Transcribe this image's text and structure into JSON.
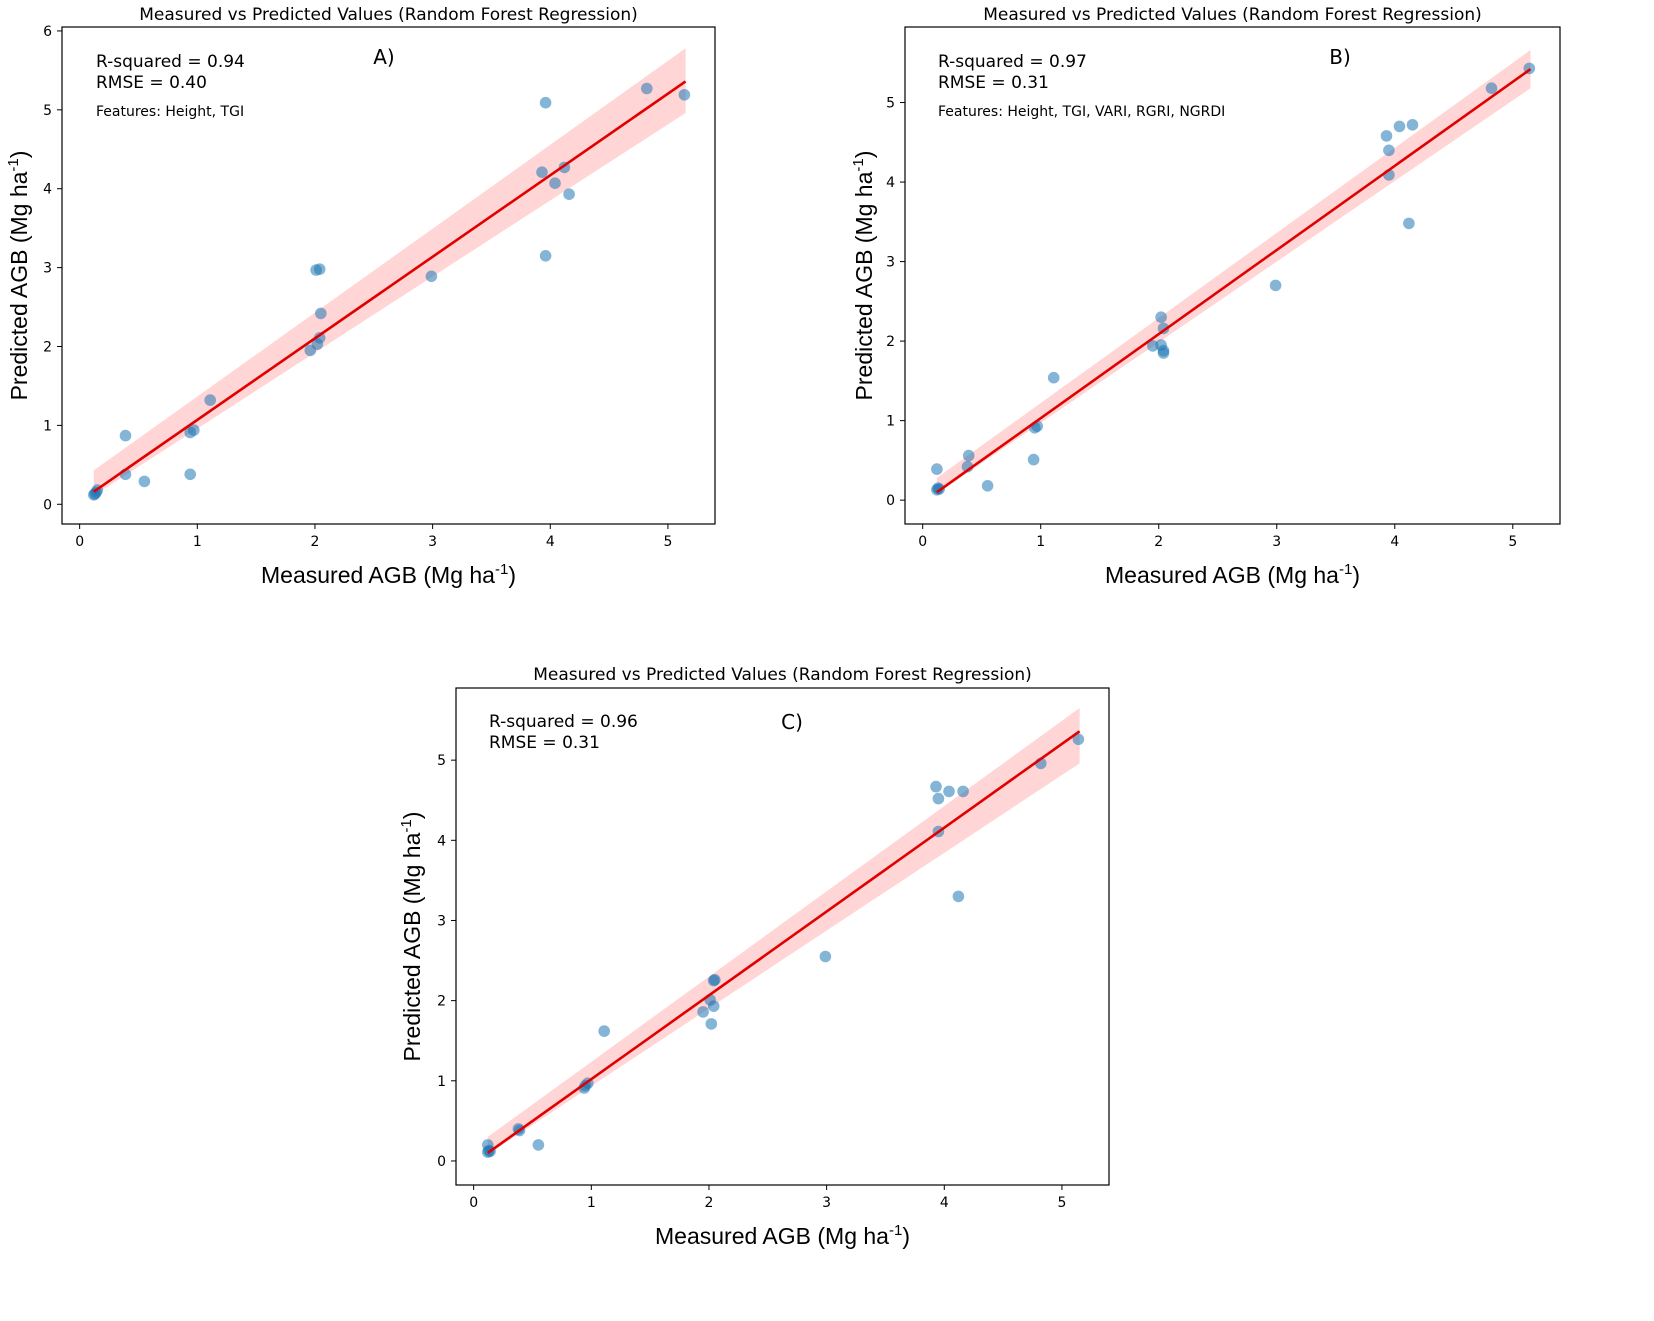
{
  "figure": {
    "panels": [
      "A",
      "B",
      "C"
    ]
  },
  "chart_data": [
    {
      "id": "A",
      "type": "scatter",
      "title": "Measured vs Predicted Values (Random Forest Regression)",
      "panel_label": "A)",
      "xlabel": "Measured AGB (Mg ha",
      "ylabel": "Predicted AGB (Mg ha",
      "unit_superscript": "-1",
      "unit_close": ")",
      "xlim": [
        -0.15,
        5.4
      ],
      "ylim": [
        -0.25,
        6.05
      ],
      "xticks": [
        0,
        1,
        2,
        3,
        4,
        5
      ],
      "yticks": [
        0,
        1,
        2,
        3,
        4,
        5,
        6
      ],
      "annotations": {
        "r_squared": "R-squared = 0.94",
        "rmse": "RMSE = 0.40",
        "features": "Features: Height, TGI"
      },
      "regression": {
        "x0": 0.12,
        "y0": 0.16,
        "x1": 5.15,
        "y1": 5.36
      },
      "confidence_band": {
        "lower": [
          0.05,
          0.33,
          4.96
        ],
        "upper": [
          0.27,
          0.33,
          5.78
        ]
      },
      "point_color": "#1f77b4",
      "line_color": "#e00000",
      "band_color": "#ffb3b3",
      "points": [
        {
          "x": 0.12,
          "y": 0.12
        },
        {
          "x": 0.13,
          "y": 0.13
        },
        {
          "x": 0.14,
          "y": 0.15
        },
        {
          "x": 0.15,
          "y": 0.18
        },
        {
          "x": 0.39,
          "y": 0.87
        },
        {
          "x": 0.39,
          "y": 0.38
        },
        {
          "x": 0.55,
          "y": 0.29
        },
        {
          "x": 0.94,
          "y": 0.38
        },
        {
          "x": 0.94,
          "y": 0.91
        },
        {
          "x": 0.97,
          "y": 0.94
        },
        {
          "x": 1.11,
          "y": 1.32
        },
        {
          "x": 1.96,
          "y": 1.95
        },
        {
          "x": 2.01,
          "y": 2.97
        },
        {
          "x": 2.04,
          "y": 2.98
        },
        {
          "x": 2.02,
          "y": 2.03
        },
        {
          "x": 2.04,
          "y": 2.11
        },
        {
          "x": 2.05,
          "y": 2.42
        },
        {
          "x": 2.99,
          "y": 2.89
        },
        {
          "x": 3.93,
          "y": 4.21
        },
        {
          "x": 3.96,
          "y": 5.09
        },
        {
          "x": 3.96,
          "y": 3.15
        },
        {
          "x": 4.04,
          "y": 4.07
        },
        {
          "x": 4.12,
          "y": 4.27
        },
        {
          "x": 4.16,
          "y": 3.93
        },
        {
          "x": 4.82,
          "y": 5.27
        },
        {
          "x": 5.14,
          "y": 5.19
        }
      ]
    },
    {
      "id": "B",
      "type": "scatter",
      "title": "Measured vs Predicted Values (Random Forest Regression)",
      "panel_label": "B)",
      "xlabel": "Measured AGB (Mg ha",
      "ylabel": "Predicted AGB (Mg ha",
      "unit_superscript": "-1",
      "unit_close": ")",
      "xlim": [
        -0.15,
        5.4
      ],
      "ylim": [
        -0.3,
        5.95
      ],
      "xticks": [
        0,
        1,
        2,
        3,
        4,
        5
      ],
      "yticks": [
        0,
        1,
        2,
        3,
        4,
        5
      ],
      "annotations": {
        "r_squared": "R-squared = 0.97",
        "rmse": "RMSE = 0.31",
        "features": "Features: Height, TGI, VARI, RGRI, NGRDI"
      },
      "regression": {
        "x0": 0.12,
        "y0": 0.1,
        "x1": 5.15,
        "y1": 5.42
      },
      "confidence_band": {
        "lower": [
          0.02,
          0.3,
          5.18
        ],
        "upper": [
          0.18,
          0.3,
          5.66
        ]
      },
      "point_color": "#1f77b4",
      "line_color": "#e00000",
      "band_color": "#ffb3b3",
      "points": [
        {
          "x": 0.12,
          "y": 0.13
        },
        {
          "x": 0.13,
          "y": 0.15
        },
        {
          "x": 0.14,
          "y": 0.14
        },
        {
          "x": 0.12,
          "y": 0.39
        },
        {
          "x": 0.38,
          "y": 0.42
        },
        {
          "x": 0.39,
          "y": 0.56
        },
        {
          "x": 0.55,
          "y": 0.18
        },
        {
          "x": 0.94,
          "y": 0.51
        },
        {
          "x": 0.95,
          "y": 0.91
        },
        {
          "x": 0.97,
          "y": 0.93
        },
        {
          "x": 1.11,
          "y": 1.54
        },
        {
          "x": 1.95,
          "y": 1.94
        },
        {
          "x": 2.02,
          "y": 2.3
        },
        {
          "x": 2.02,
          "y": 1.95
        },
        {
          "x": 2.04,
          "y": 1.88
        },
        {
          "x": 2.04,
          "y": 1.85
        },
        {
          "x": 2.04,
          "y": 2.16
        },
        {
          "x": 2.99,
          "y": 2.7
        },
        {
          "x": 3.93,
          "y": 4.58
        },
        {
          "x": 3.95,
          "y": 4.4
        },
        {
          "x": 3.95,
          "y": 4.09
        },
        {
          "x": 4.04,
          "y": 4.7
        },
        {
          "x": 4.12,
          "y": 3.48
        },
        {
          "x": 4.15,
          "y": 4.72
        },
        {
          "x": 4.82,
          "y": 5.18
        },
        {
          "x": 5.14,
          "y": 5.43
        }
      ]
    },
    {
      "id": "C",
      "type": "scatter",
      "title": "Measured vs Predicted Values (Random Forest Regression)",
      "panel_label": "C)",
      "xlabel": "Measured AGB (Mg ha",
      "ylabel": "Predicted AGB (Mg ha",
      "unit_superscript": "-1",
      "unit_close": ")",
      "xlim": [
        -0.15,
        5.4
      ],
      "ylim": [
        -0.3,
        5.9
      ],
      "xticks": [
        0,
        1,
        2,
        3,
        4,
        5
      ],
      "yticks": [
        0,
        1,
        2,
        3,
        4,
        5
      ],
      "annotations": {
        "r_squared": "R-squared = 0.96",
        "rmse": "RMSE = 0.31",
        "features": ""
      },
      "regression": {
        "x0": 0.12,
        "y0": 0.1,
        "x1": 5.15,
        "y1": 5.36
      },
      "confidence_band": {
        "lower": [
          0.02,
          0.3,
          4.96
        ],
        "upper": [
          0.2,
          0.3,
          5.65
        ]
      },
      "point_color": "#1f77b4",
      "line_color": "#e00000",
      "band_color": "#ffb3b3",
      "points": [
        {
          "x": 0.12,
          "y": 0.11
        },
        {
          "x": 0.13,
          "y": 0.13
        },
        {
          "x": 0.12,
          "y": 0.2
        },
        {
          "x": 0.14,
          "y": 0.12
        },
        {
          "x": 0.38,
          "y": 0.4
        },
        {
          "x": 0.39,
          "y": 0.38
        },
        {
          "x": 0.55,
          "y": 0.2
        },
        {
          "x": 0.94,
          "y": 0.91
        },
        {
          "x": 0.95,
          "y": 0.94
        },
        {
          "x": 0.97,
          "y": 0.97
        },
        {
          "x": 1.11,
          "y": 1.62
        },
        {
          "x": 1.95,
          "y": 1.86
        },
        {
          "x": 2.01,
          "y": 2.01
        },
        {
          "x": 2.02,
          "y": 1.71
        },
        {
          "x": 2.04,
          "y": 2.25
        },
        {
          "x": 2.04,
          "y": 1.93
        },
        {
          "x": 2.05,
          "y": 2.26
        },
        {
          "x": 2.99,
          "y": 2.55
        },
        {
          "x": 3.93,
          "y": 4.67
        },
        {
          "x": 3.95,
          "y": 4.52
        },
        {
          "x": 3.95,
          "y": 4.11
        },
        {
          "x": 4.04,
          "y": 4.61
        },
        {
          "x": 4.12,
          "y": 3.3
        },
        {
          "x": 4.16,
          "y": 4.61
        },
        {
          "x": 4.82,
          "y": 4.96
        },
        {
          "x": 5.14,
          "y": 5.26
        }
      ]
    }
  ]
}
